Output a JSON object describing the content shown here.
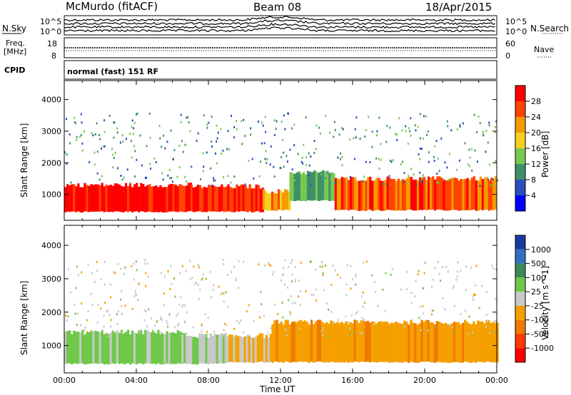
{
  "header": {
    "station": "McMurdo (fitACF)",
    "beam": "Beam 08",
    "date": "18/Apr/2015"
  },
  "side_labels": {
    "nsky": "N.Sky",
    "nsearch": "N.Search",
    "freq_line1": "Freq.",
    "freq_line2": "[MHz]",
    "nave": "Nave",
    "cpid": "CPID",
    "cpid_value": "normal (fast) 151 RF"
  },
  "strip_ticks": {
    "noise_left": [
      "10^5",
      "10^0"
    ],
    "noise_right": [
      "10^5",
      "10^0"
    ],
    "freq_left": [
      "18",
      "8"
    ],
    "nave_right": [
      "60",
      "0"
    ]
  },
  "time_axis": {
    "label": "Time UT",
    "ticks": [
      "00:00",
      "04:00",
      "08:00",
      "12:00",
      "16:00",
      "20:00",
      "00:00"
    ]
  },
  "colors": {
    "power_scale": [
      "#0000ff",
      "#2a4fbf",
      "#3f8f6a",
      "#78c850",
      "#f5d020",
      "#f59a00",
      "#ff4400",
      "#ff0000"
    ],
    "velocity_scale": [
      "#1a3aa0",
      "#3070c0",
      "#3a8a5a",
      "#6fc84a",
      "#c8c8c8",
      "#f5a000",
      "#f07a00",
      "#ff3a00",
      "#ff0000"
    ]
  },
  "chart_data": [
    {
      "type": "heatmap",
      "title": "",
      "ylabel": "Slant Range [km]",
      "xlabel": "",
      "x_range_hours": [
        0,
        24
      ],
      "ylim": [
        180,
        4600
      ],
      "yticks": [
        1000,
        2000,
        3000,
        4000
      ],
      "colorbar": {
        "label": "Power [dB]",
        "ticks": [
          "4",
          "8",
          "12",
          "16",
          "20",
          "24",
          "28"
        ],
        "range": [
          0,
          32
        ]
      },
      "bands": [
        {
          "t": [
            0.0,
            7.0
          ],
          "range": [
            450,
            1300
          ],
          "value": 30
        },
        {
          "t": [
            7.0,
            11.0
          ],
          "range": [
            450,
            1250
          ],
          "value": 28
        },
        {
          "t": [
            11.0,
            12.5
          ],
          "range": [
            500,
            1100
          ],
          "value": 22
        },
        {
          "t": [
            12.5,
            15.0
          ],
          "range": [
            800,
            1700
          ],
          "value": 12
        },
        {
          "t": [
            15.0,
            24.0
          ],
          "range": [
            500,
            1500
          ],
          "value": 26
        }
      ]
    },
    {
      "type": "heatmap",
      "title": "",
      "ylabel": "Slant Range [km]",
      "xlabel": "Time UT",
      "x_range_hours": [
        0,
        24
      ],
      "ylim": [
        180,
        4600
      ],
      "yticks": [
        1000,
        2000,
        3000,
        4000
      ],
      "colorbar": {
        "label": "Velocity [m s^-1]",
        "ticks": [
          "1000",
          "500",
          "100",
          "25",
          "-25",
          "-100",
          "-500",
          "-1000"
        ],
        "range": [
          -1200,
          1200
        ]
      },
      "bands": [
        {
          "t": [
            0.0,
            6.5
          ],
          "range": [
            450,
            1400
          ],
          "value": 200
        },
        {
          "t": [
            6.5,
            9.0
          ],
          "range": [
            450,
            1300
          ],
          "value": 80
        },
        {
          "t": [
            9.0,
            11.5
          ],
          "range": [
            500,
            1300
          ],
          "value": -150
        },
        {
          "t": [
            11.5,
            24.0
          ],
          "range": [
            500,
            1700
          ],
          "value": -300
        }
      ]
    }
  ]
}
